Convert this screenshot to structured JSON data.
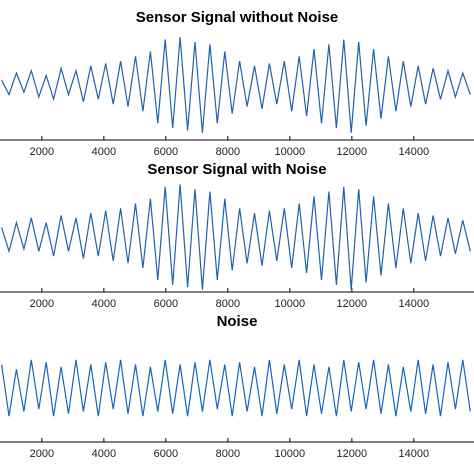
{
  "chart_data": [
    {
      "type": "line",
      "title": "Sensor Signal without Noise",
      "color": "#1f62ad",
      "x": [
        700,
        940,
        1180,
        1420,
        1660,
        1900,
        2140,
        2380,
        2620,
        2860,
        3100,
        3340,
        3580,
        3820,
        4060,
        4300,
        4540,
        4780,
        5020,
        5260,
        5500,
        5740,
        5980,
        6220,
        6460,
        6700,
        6940,
        7180,
        7420,
        7660,
        7900,
        8140,
        8380,
        8620,
        8860,
        9100,
        9340,
        9580,
        9820,
        10060,
        10300,
        10540,
        10780,
        11020,
        11260,
        11500,
        11740,
        11980,
        12220,
        12460,
        12700,
        12940,
        13180,
        13420,
        13660,
        13900,
        14140,
        14380,
        14620,
        14860,
        15100,
        15340,
        15580,
        15820
      ],
      "values": [
        0.1,
        -0.2,
        0.25,
        -0.15,
        0.3,
        -0.25,
        0.2,
        -0.3,
        0.35,
        -0.2,
        0.3,
        -0.35,
        0.4,
        -0.3,
        0.45,
        -0.4,
        0.5,
        -0.45,
        0.6,
        -0.55,
        0.7,
        -0.8,
        0.95,
        -0.9,
        1.0,
        -0.95,
        0.9,
        -1.0,
        0.85,
        -0.8,
        0.7,
        -0.6,
        0.5,
        -0.45,
        0.4,
        -0.5,
        0.45,
        -0.4,
        0.5,
        -0.55,
        0.6,
        -0.65,
        0.75,
        -0.8,
        0.85,
        -0.9,
        0.95,
        -1.0,
        0.9,
        -0.85,
        0.75,
        -0.7,
        0.6,
        -0.55,
        0.5,
        -0.45,
        0.4,
        -0.4,
        0.35,
        -0.3,
        0.3,
        -0.25,
        0.25,
        -0.2
      ],
      "xlim": [
        650,
        15940
      ],
      "ylim": [
        -1.15,
        1.15
      ],
      "xticks": [
        2000,
        4000,
        6000,
        8000,
        10000,
        12000,
        14000
      ]
    },
    {
      "type": "line",
      "title": "Sensor Signal with Noise",
      "color": "#1f62ad",
      "x": [
        700,
        940,
        1180,
        1420,
        1660,
        1900,
        2140,
        2380,
        2620,
        2860,
        3100,
        3340,
        3580,
        3820,
        4060,
        4300,
        4540,
        4780,
        5020,
        5260,
        5500,
        5740,
        5980,
        6220,
        6460,
        6700,
        6940,
        7180,
        7420,
        7660,
        7900,
        8140,
        8380,
        8620,
        8860,
        9100,
        9340,
        9580,
        9820,
        10060,
        10300,
        10540,
        10780,
        11020,
        11260,
        11500,
        11740,
        11980,
        12220,
        12460,
        12700,
        12940,
        13180,
        13420,
        13660,
        13900,
        14140,
        14380,
        14620,
        14860,
        15100,
        15340,
        15580,
        15820
      ],
      "values": [
        0.2,
        -0.3,
        0.3,
        -0.25,
        0.4,
        -0.3,
        0.3,
        -0.4,
        0.45,
        -0.3,
        0.4,
        -0.45,
        0.5,
        -0.4,
        0.55,
        -0.5,
        0.6,
        -0.55,
        0.7,
        -0.65,
        0.8,
        -0.9,
        1.05,
        -1.0,
        1.1,
        -1.05,
        1.0,
        -1.1,
        0.95,
        -0.9,
        0.8,
        -0.7,
        0.6,
        -0.55,
        0.5,
        -0.6,
        0.55,
        -0.5,
        0.6,
        -0.65,
        0.7,
        -0.75,
        0.85,
        -0.9,
        0.95,
        -1.0,
        1.05,
        -1.1,
        1.0,
        -0.95,
        0.85,
        -0.8,
        0.7,
        -0.65,
        0.6,
        -0.55,
        0.5,
        -0.5,
        0.45,
        -0.4,
        0.4,
        -0.35,
        0.35,
        -0.3
      ],
      "xlim": [
        650,
        15940
      ],
      "ylim": [
        -1.15,
        1.15
      ],
      "xticks": [
        2000,
        4000,
        6000,
        8000,
        10000,
        12000,
        14000
      ]
    },
    {
      "type": "line",
      "title": "Noise",
      "color": "#1565c0",
      "x": [
        700,
        940,
        1180,
        1420,
        1660,
        1900,
        2140,
        2380,
        2620,
        2860,
        3100,
        3340,
        3580,
        3820,
        4060,
        4300,
        4540,
        4780,
        5020,
        5260,
        5500,
        5740,
        5980,
        6220,
        6460,
        6700,
        6940,
        7180,
        7420,
        7660,
        7900,
        8140,
        8380,
        8620,
        8860,
        9100,
        9340,
        9580,
        9820,
        10060,
        10300,
        10540,
        10780,
        11020,
        11260,
        11500,
        11740,
        11980,
        12220,
        12460,
        12700,
        12940,
        13180,
        13420,
        13660,
        13900,
        14140,
        14380,
        14620,
        14860,
        15100,
        15340,
        15580,
        15820
      ],
      "values": [
        0.5,
        -0.6,
        0.4,
        -0.5,
        0.6,
        -0.45,
        0.55,
        -0.6,
        0.45,
        -0.55,
        0.6,
        -0.5,
        0.5,
        -0.6,
        0.55,
        -0.45,
        0.6,
        -0.55,
        0.5,
        -0.6,
        0.45,
        -0.5,
        0.6,
        -0.55,
        0.5,
        -0.6,
        0.55,
        -0.5,
        0.6,
        -0.45,
        0.5,
        -0.6,
        0.55,
        -0.5,
        0.45,
        -0.6,
        0.6,
        -0.55,
        0.5,
        -0.45,
        0.6,
        -0.6,
        0.5,
        -0.55,
        0.45,
        -0.6,
        0.6,
        -0.5,
        0.55,
        -0.45,
        0.6,
        -0.55,
        0.5,
        -0.6,
        0.45,
        -0.5,
        0.6,
        -0.55,
        0.5,
        -0.6,
        0.55,
        -0.45,
        0.6,
        -0.5
      ],
      "xlim": [
        650,
        15940
      ],
      "ylim": [
        -1.15,
        1.15
      ],
      "xticks": [
        2000,
        4000,
        6000,
        8000,
        10000,
        12000,
        14000
      ]
    }
  ]
}
